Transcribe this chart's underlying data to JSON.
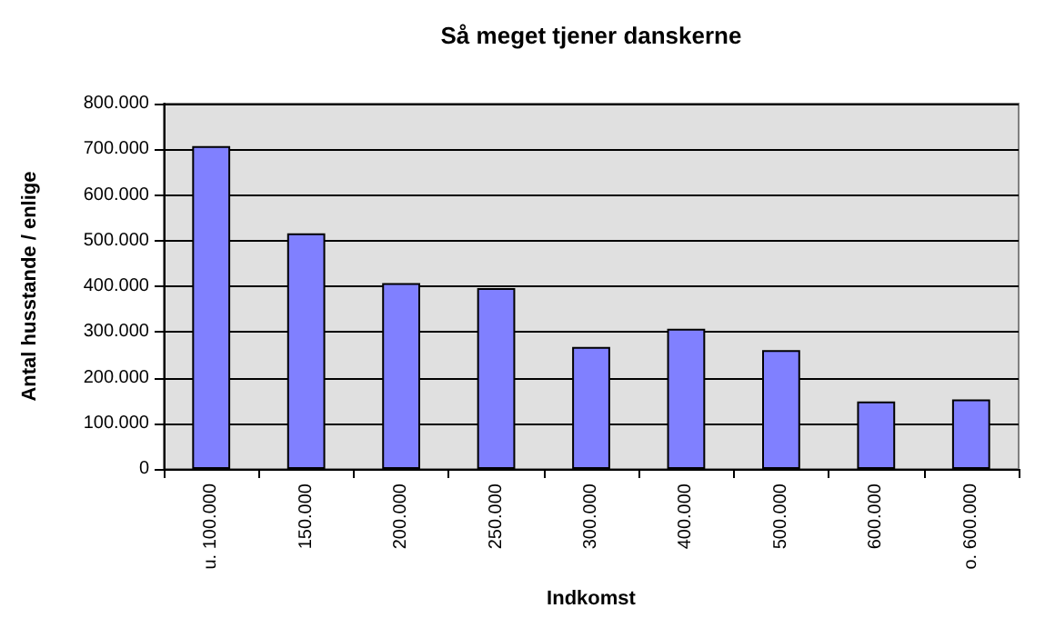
{
  "chart_data": {
    "type": "bar",
    "title": "Så meget tjener danskerne",
    "xlabel": "Indkomst",
    "ylabel": "Antal husstande / enlige",
    "categories": [
      "u. 100.000",
      "150.000",
      "200.000",
      "250.000",
      "300.000",
      "400.000",
      "500.000",
      "600.000",
      "o. 600.000"
    ],
    "values": [
      707000,
      516000,
      407000,
      396000,
      267000,
      307000,
      260000,
      148000,
      152000
    ],
    "color": "#8080ff",
    "ylim": [
      0,
      800000
    ],
    "yticks": [
      {
        "value": 0,
        "label": "0"
      },
      {
        "value": 100000,
        "label": "100.000"
      },
      {
        "value": 200000,
        "label": "200.000"
      },
      {
        "value": 300000,
        "label": "300.000"
      },
      {
        "value": 400000,
        "label": "400.000"
      },
      {
        "value": 500000,
        "label": "500.000"
      },
      {
        "value": 600000,
        "label": "600.000"
      },
      {
        "value": 700000,
        "label": "700.000"
      },
      {
        "value": 800000,
        "label": "800.000"
      }
    ],
    "grid": "y"
  }
}
